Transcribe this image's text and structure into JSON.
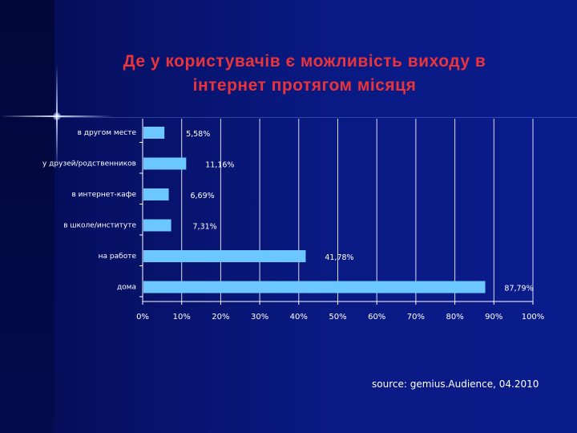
{
  "title_lines": [
    "Де у користувачів є можливість виходу в",
    "інтернет протягом місяця"
  ],
  "source": "source: gemius.Audience, 04.2010",
  "colors": {
    "bar": "#6cc6ff",
    "title": "#e8343a",
    "text": "#ffffff",
    "grid": "#ffffff"
  },
  "chart_data": {
    "type": "bar",
    "orientation": "horizontal",
    "categories": [
      "в другом месте",
      "у друзей/родственников",
      "в интернет-кафе",
      "в школе/институте",
      "на работе",
      "дома"
    ],
    "values": [
      5.58,
      11.16,
      6.69,
      7.31,
      41.78,
      87.79
    ],
    "value_labels": [
      "5,58%",
      "11,16%",
      "6,69%",
      "7,31%",
      "41,78%",
      "87,79%"
    ],
    "xlim": [
      0,
      100
    ],
    "xticks": [
      "0%",
      "10%",
      "20%",
      "30%",
      "40%",
      "50%",
      "60%",
      "70%",
      "80%",
      "90%",
      "100%"
    ],
    "grid": true,
    "legend": "none"
  }
}
